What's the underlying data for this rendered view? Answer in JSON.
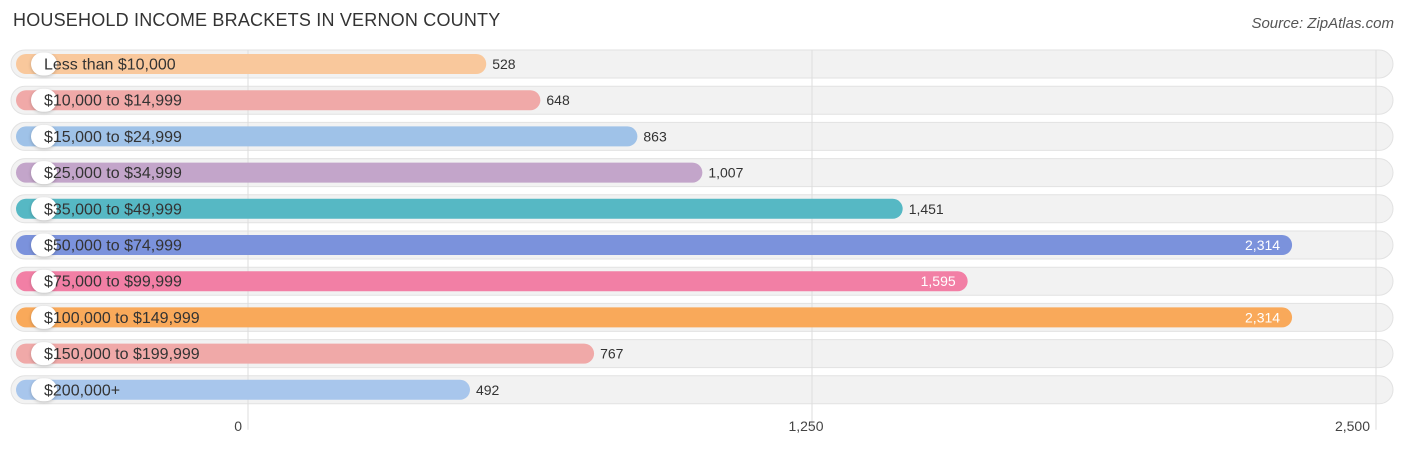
{
  "header": {
    "title": "HOUSEHOLD INCOME BRACKETS IN VERNON COUNTY",
    "source": "Source: ZipAtlas.com"
  },
  "chart_data": {
    "type": "bar",
    "orientation": "horizontal",
    "title": "HOUSEHOLD INCOME BRACKETS IN VERNON COUNTY",
    "xlabel": "",
    "ylabel": "",
    "xlim": [
      0,
      2500
    ],
    "ticks": [
      0,
      1250,
      2500
    ],
    "tick_labels": [
      "0",
      "1,250",
      "2,500"
    ],
    "grid": true,
    "categories": [
      "Less than $10,000",
      "$10,000 to $14,999",
      "$15,000 to $24,999",
      "$25,000 to $34,999",
      "$35,000 to $49,999",
      "$50,000 to $74,999",
      "$75,000 to $99,999",
      "$100,000 to $149,999",
      "$150,000 to $199,999",
      "$200,000+"
    ],
    "values": [
      528,
      648,
      863,
      1007,
      1451,
      2314,
      1595,
      2314,
      767,
      492
    ],
    "value_labels": [
      "528",
      "648",
      "863",
      "1,007",
      "1,451",
      "2,314",
      "1,595",
      "2,314",
      "767",
      "492"
    ],
    "colors": [
      "#f9c89c",
      "#f0a9a8",
      "#9fc2e8",
      "#c3a5ca",
      "#56b8c4",
      "#7b92dc",
      "#f27fa5",
      "#f9a95a",
      "#f0a9a8",
      "#a8c6ec"
    ]
  }
}
